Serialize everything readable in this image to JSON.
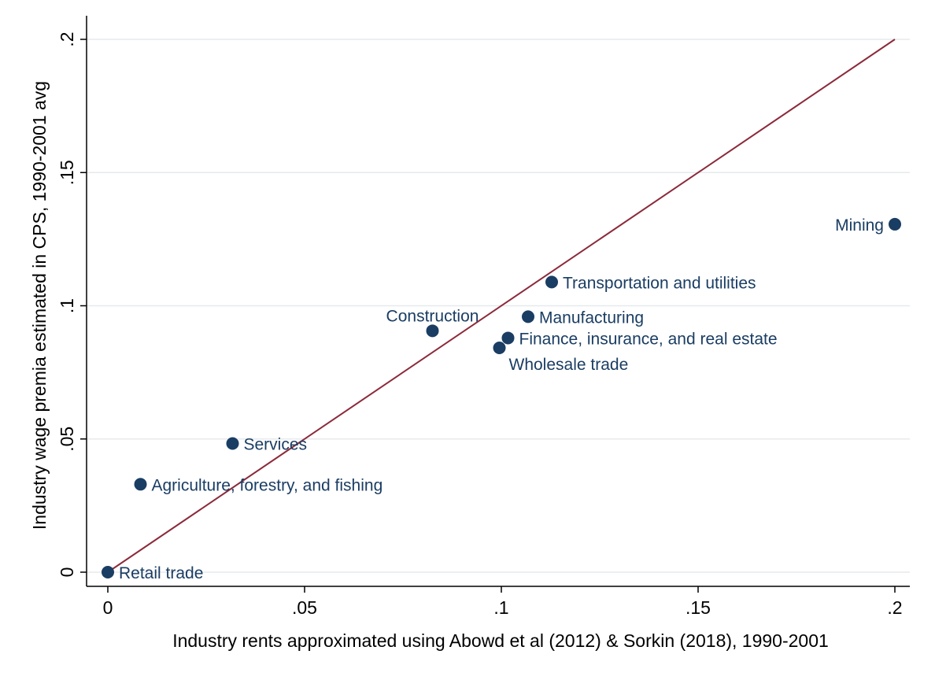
{
  "chart_data": {
    "type": "scatter",
    "xlabel": "Industry rents approximated using Abowd et al (2012) & Sorkin (2018), 1990-2001",
    "ylabel": "Industry wage premia estimated in CPS, 1990-2001 avg",
    "xlim": [
      0,
      0.2
    ],
    "ylim": [
      0,
      0.2
    ],
    "x_ticks": [
      {
        "value": 0,
        "label": "0"
      },
      {
        "value": 0.05,
        "label": ".05"
      },
      {
        "value": 0.1,
        "label": ".1"
      },
      {
        "value": 0.15,
        "label": ".15"
      },
      {
        "value": 0.2,
        "label": ".2"
      }
    ],
    "y_ticks": [
      {
        "value": 0,
        "label": "0"
      },
      {
        "value": 0.05,
        "label": ".05"
      },
      {
        "value": 0.1,
        "label": ".1"
      },
      {
        "value": 0.15,
        "label": ".15"
      },
      {
        "value": 0.2,
        "label": ".2"
      }
    ],
    "grid": true,
    "points": [
      {
        "label": "Retail trade",
        "x": 0.0,
        "y": 0.0,
        "label_position": "right"
      },
      {
        "label": "Agriculture, forestry, and fishing",
        "x": 0.0083,
        "y": 0.033,
        "label_position": "right"
      },
      {
        "label": "Services",
        "x": 0.0317,
        "y": 0.0483,
        "label_position": "right"
      },
      {
        "label": "Construction",
        "x": 0.0825,
        "y": 0.0906,
        "label_position": "above-left"
      },
      {
        "label": "Wholesale trade",
        "x": 0.0995,
        "y": 0.0842,
        "label_position": "below-right"
      },
      {
        "label": "Finance, insurance, and real estate",
        "x": 0.1017,
        "y": 0.0879,
        "label_position": "right"
      },
      {
        "label": "Manufacturing",
        "x": 0.1068,
        "y": 0.0959,
        "label_position": "right"
      },
      {
        "label": "Transportation and utilities",
        "x": 0.1128,
        "y": 0.1089,
        "label_position": "right"
      },
      {
        "label": "Mining",
        "x": 0.2,
        "y": 0.1306,
        "label_position": "left"
      }
    ],
    "reference_line": {
      "from": [
        0,
        0
      ],
      "to": [
        0.2,
        0.2
      ],
      "color": "#8c2a3a"
    },
    "colors": {
      "marker": "#1a3d63",
      "label": "#1a3d63",
      "grid": "#e6eaed",
      "axis": "#000000"
    }
  }
}
